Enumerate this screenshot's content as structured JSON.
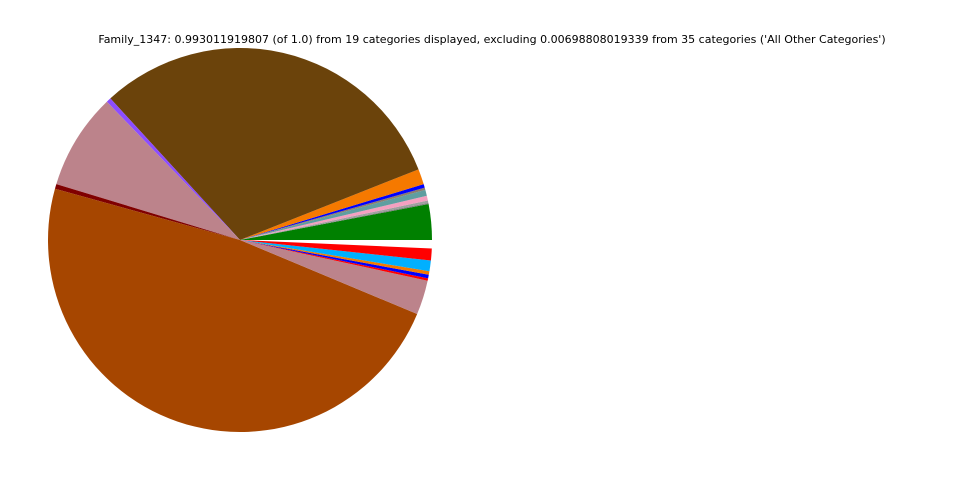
{
  "chart_data": {
    "type": "pie",
    "title": "Family_1347: 0.993011919807 (of 1.0) from 19 categories displayed, excluding 0.00698808019339 from 35 categories ('All Other Categories')",
    "start_angle_deg": 0,
    "direction": "counterclockwise",
    "slices": [
      {
        "value": 0.03,
        "color": "#008000"
      },
      {
        "value": 0.001,
        "color": "#808080"
      },
      {
        "value": 0.002,
        "color": "#a0a0a0"
      },
      {
        "value": 0.004,
        "color": "#f4a0c0"
      },
      {
        "value": 0.005,
        "color": "#5f9ea0"
      },
      {
        "value": 0.002,
        "color": "#8c7c6c"
      },
      {
        "value": 0.003,
        "color": "#0000ff"
      },
      {
        "value": 0.013,
        "color": "#f57900"
      },
      {
        "value": 0.308,
        "color": "#6b430b"
      },
      {
        "value": 0.004,
        "color": "#8c4dff"
      },
      {
        "value": 0.081,
        "color": "#bc838b"
      },
      {
        "value": 0.004,
        "color": "#800000"
      },
      {
        "value": 0.48,
        "color": "#a64600"
      },
      {
        "value": 0.029,
        "color": "#bc838b"
      },
      {
        "value": 0.002,
        "color": "#ff0000"
      },
      {
        "value": 0.003,
        "color": "#0000ff"
      },
      {
        "value": 0.003,
        "color": "#f57900"
      },
      {
        "value": 0.009,
        "color": "#00b0ff"
      },
      {
        "value": 0.01,
        "color": "#ff0000"
      }
    ]
  }
}
